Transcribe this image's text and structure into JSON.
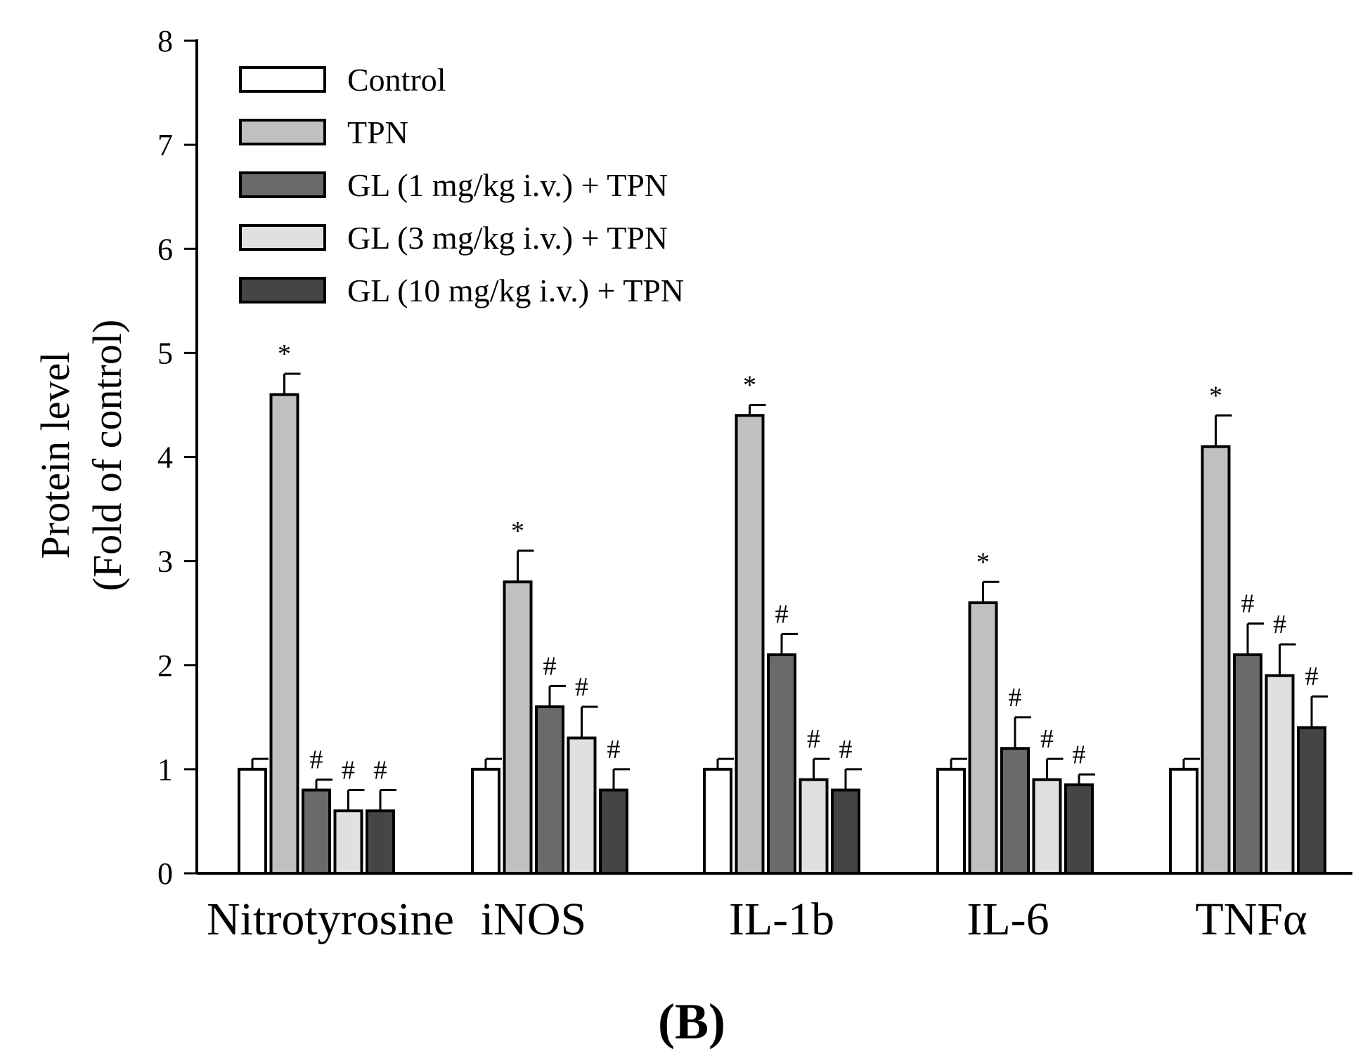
{
  "chart_data": {
    "type": "bar",
    "ylabel_line1": "Protein level",
    "ylabel_line2": "(Fold of control)",
    "ylim": [
      0,
      8
    ],
    "yticks": [
      "0",
      "1",
      "2",
      "3",
      "4",
      "5",
      "6",
      "7",
      "8"
    ],
    "categories": [
      "Nitrotyrosine",
      "iNOS",
      "IL-1b",
      "IL-6",
      "TNFα"
    ],
    "series": [
      {
        "name": "Control",
        "color": "#ffffff",
        "values": [
          1.0,
          1.0,
          1.0,
          1.0,
          1.0
        ],
        "errors": [
          0.1,
          0.1,
          0.1,
          0.1,
          0.1
        ],
        "marks": [
          "",
          "",
          "",
          "",
          ""
        ]
      },
      {
        "name": "TPN",
        "color": "#c0c0c0",
        "values": [
          4.6,
          2.8,
          4.4,
          2.6,
          4.1
        ],
        "errors": [
          0.2,
          0.3,
          0.1,
          0.2,
          0.3
        ],
        "marks": [
          "*",
          "*",
          "*",
          "*",
          "*"
        ]
      },
      {
        "name": "GL (1 mg/kg i.v.) + TPN",
        "color": "#6a6a6a",
        "values": [
          0.8,
          1.6,
          2.1,
          1.2,
          2.1
        ],
        "errors": [
          0.1,
          0.2,
          0.2,
          0.3,
          0.3
        ],
        "marks": [
          "#",
          "#",
          "#",
          "#",
          "#"
        ]
      },
      {
        "name": "GL (3 mg/kg i.v.) + TPN",
        "color": "#e0e0e0",
        "values": [
          0.6,
          1.3,
          0.9,
          0.9,
          1.9
        ],
        "errors": [
          0.2,
          0.3,
          0.2,
          0.2,
          0.3
        ],
        "marks": [
          "#",
          "#",
          "#",
          "#",
          "#"
        ]
      },
      {
        "name": "GL (10 mg/kg i.v.) + TPN",
        "color": "#454545",
        "values": [
          0.6,
          0.8,
          0.8,
          0.85,
          1.4
        ],
        "errors": [
          0.2,
          0.2,
          0.2,
          0.1,
          0.3
        ],
        "marks": [
          "#",
          "#",
          "#",
          "#",
          "#"
        ]
      }
    ],
    "legend_position": "top-left",
    "panel_label": "(B)"
  }
}
